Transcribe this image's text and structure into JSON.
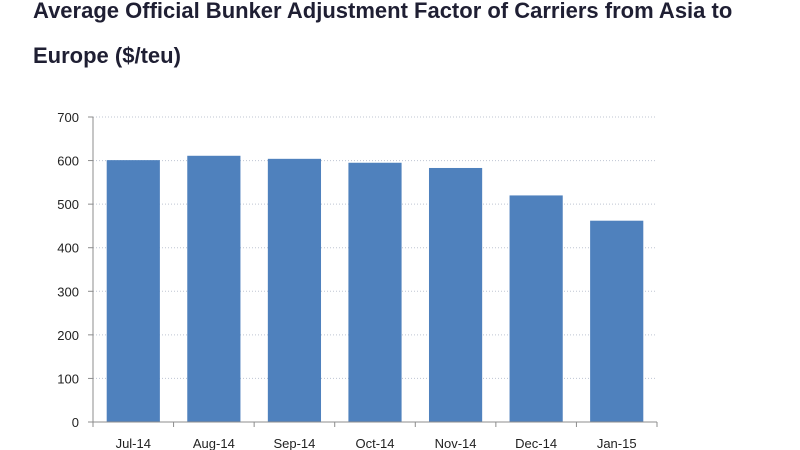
{
  "title": "Average Official Bunker Adjustment Factor of Carriers from Asia to Europe ($/teu)",
  "chart_data": {
    "type": "bar",
    "title": "Average Official Bunker Adjustment Factor of Carriers from Asia to Europe ($/teu)",
    "xlabel": "",
    "ylabel": "",
    "categories": [
      "Jul-14",
      "Aug-14",
      "Sep-14",
      "Oct-14",
      "Nov-14",
      "Dec-14",
      "Jan-15"
    ],
    "values": [
      601,
      611,
      604,
      595,
      583,
      520,
      462
    ],
    "ylim": [
      0,
      700
    ],
    "yticks": [
      0,
      100,
      200,
      300,
      400,
      500,
      600,
      700
    ],
    "grid": true,
    "legend": "none",
    "bar_color": "#4f81bd",
    "grid_color": "#bfc5d2"
  }
}
